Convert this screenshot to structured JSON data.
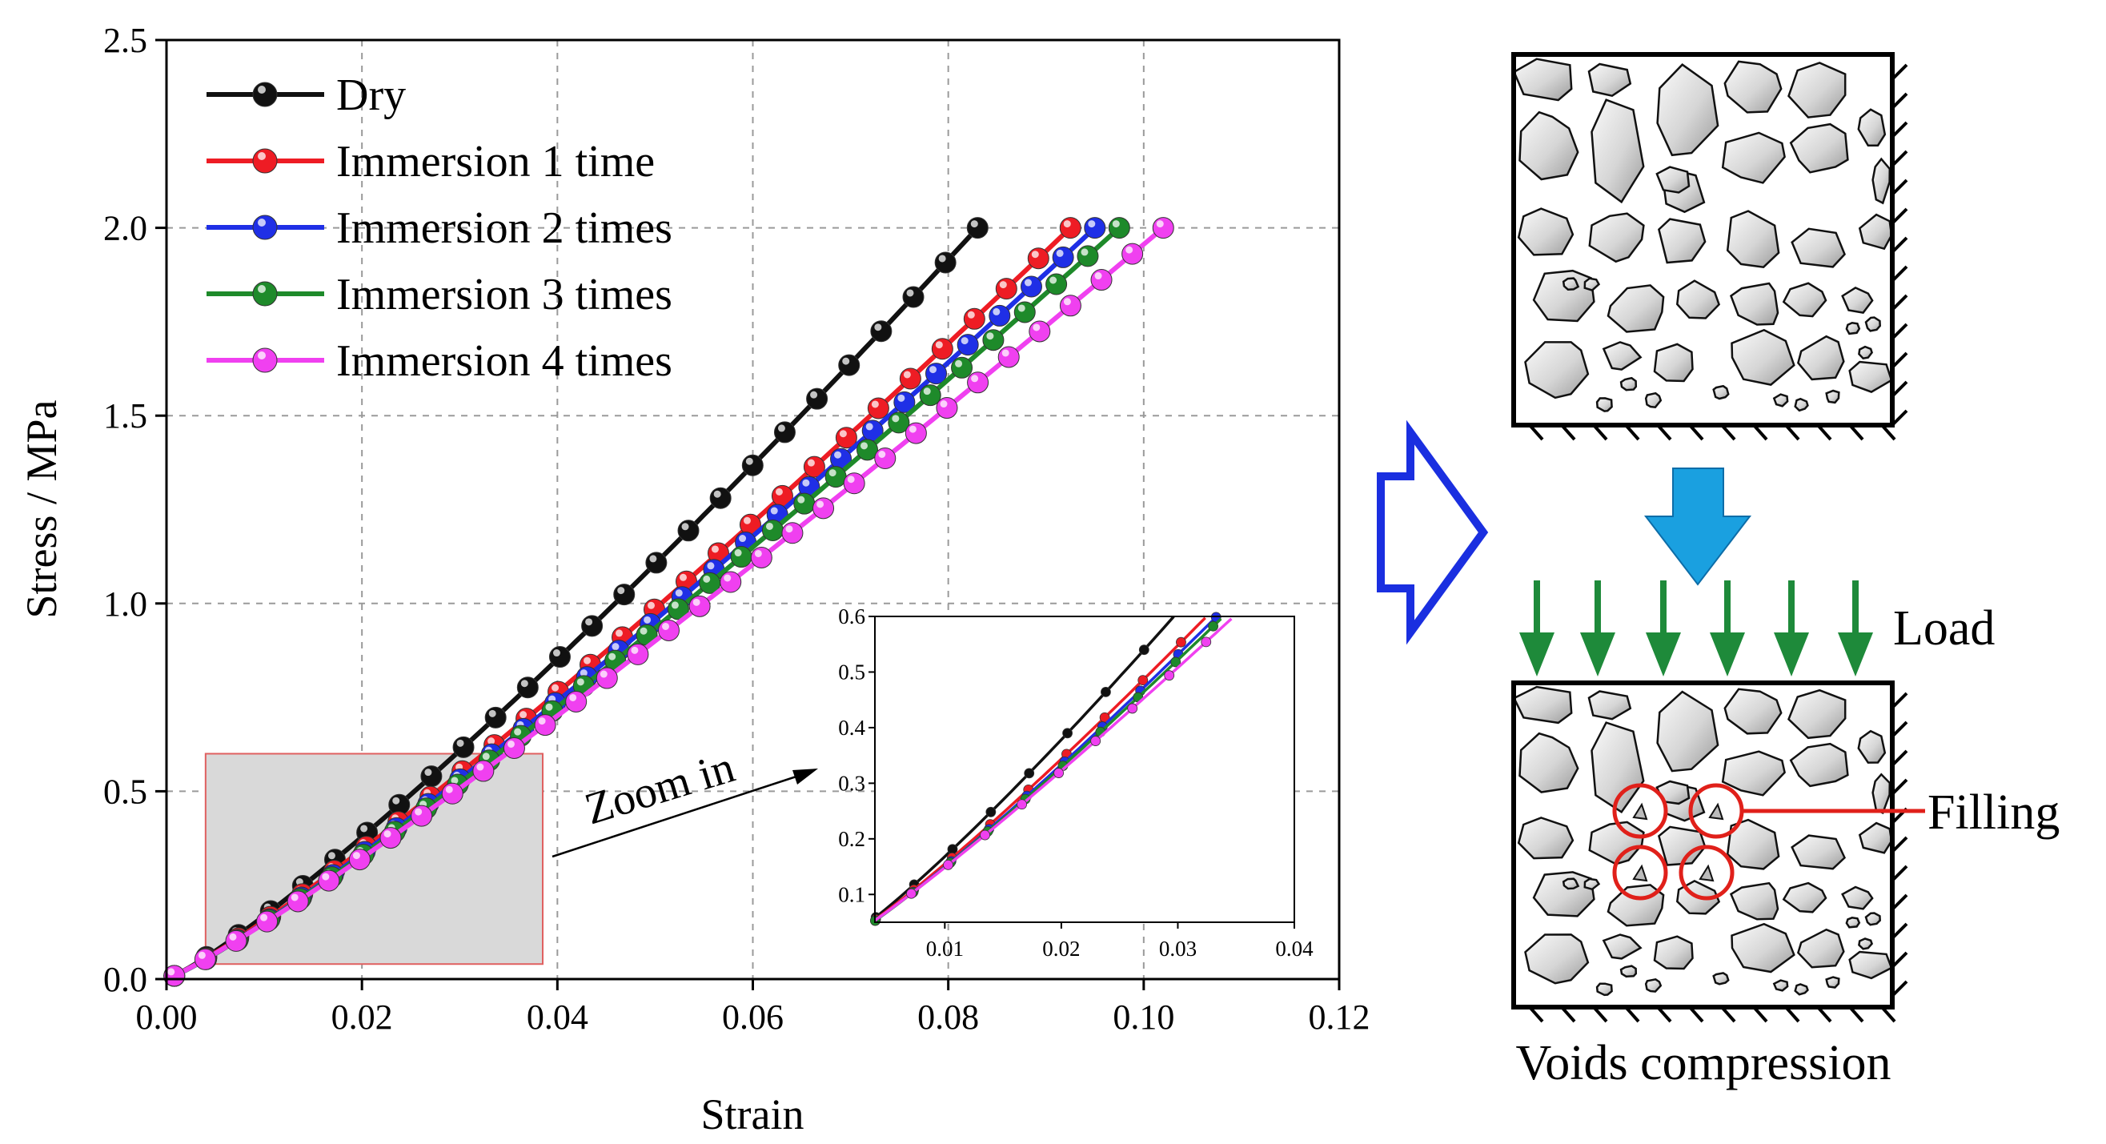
{
  "chart_data": [
    {
      "type": "line",
      "xlabel": "Strain",
      "ylabel": "Stress / MPa",
      "xlim": [
        0,
        0.12
      ],
      "ylim": [
        0,
        2.5
      ],
      "xticks": [
        "0.00",
        "0.02",
        "0.04",
        "0.06",
        "0.08",
        "0.10",
        "0.12"
      ],
      "yticks": [
        "0.0",
        "0.5",
        "1.0",
        "1.5",
        "2.0",
        "2.5"
      ],
      "grid": true,
      "legend_position": "top-left",
      "zoom_region": {
        "x": [
          0.004,
          0.0385
        ],
        "y": [
          0.04,
          0.6
        ]
      },
      "series": [
        {
          "name": "Dry",
          "color": "#111111",
          "x_end": 0.083,
          "x_start": 0.0008,
          "curve": 1.17,
          "points": 26
        },
        {
          "name": "Immersion 1 time",
          "color": "#ee1c24",
          "x_end": 0.0925,
          "x_start": 0.0008,
          "curve": 1.15,
          "points": 29
        },
        {
          "name": "Immersion 2 times",
          "color": "#1f2fe6",
          "x_end": 0.095,
          "x_start": 0.0008,
          "curve": 1.15,
          "points": 30
        },
        {
          "name": "Immersion 3 times",
          "color": "#1e8a2a",
          "x_end": 0.0975,
          "x_start": 0.0008,
          "curve": 1.14,
          "points": 31
        },
        {
          "name": "Immersion 4 times",
          "color": "#f040f0",
          "x_end": 0.102,
          "x_start": 0.0008,
          "curve": 1.12,
          "points": 33
        }
      ]
    },
    {
      "type": "line",
      "title": "inset",
      "xlim": [
        0.004,
        0.04
      ],
      "ylim": [
        0.05,
        0.6
      ],
      "xticks": [
        "0.01",
        "0.02",
        "0.03",
        "0.04"
      ],
      "yticks": [
        "0.1",
        "0.2",
        "0.3",
        "0.4",
        "0.5",
        "0.6"
      ]
    }
  ],
  "annotations": {
    "zoom_label": "Zoom in",
    "load_label": "Load",
    "filling_label": "Filling",
    "voids_label": "Voids compression"
  },
  "colors": {
    "outline_arrow": "#1a2fe0",
    "down_arrow": "#1aa0e0",
    "load_arrow": "#1e8a3a",
    "circle": "#e0201a",
    "zoom_box": "#e06060"
  }
}
